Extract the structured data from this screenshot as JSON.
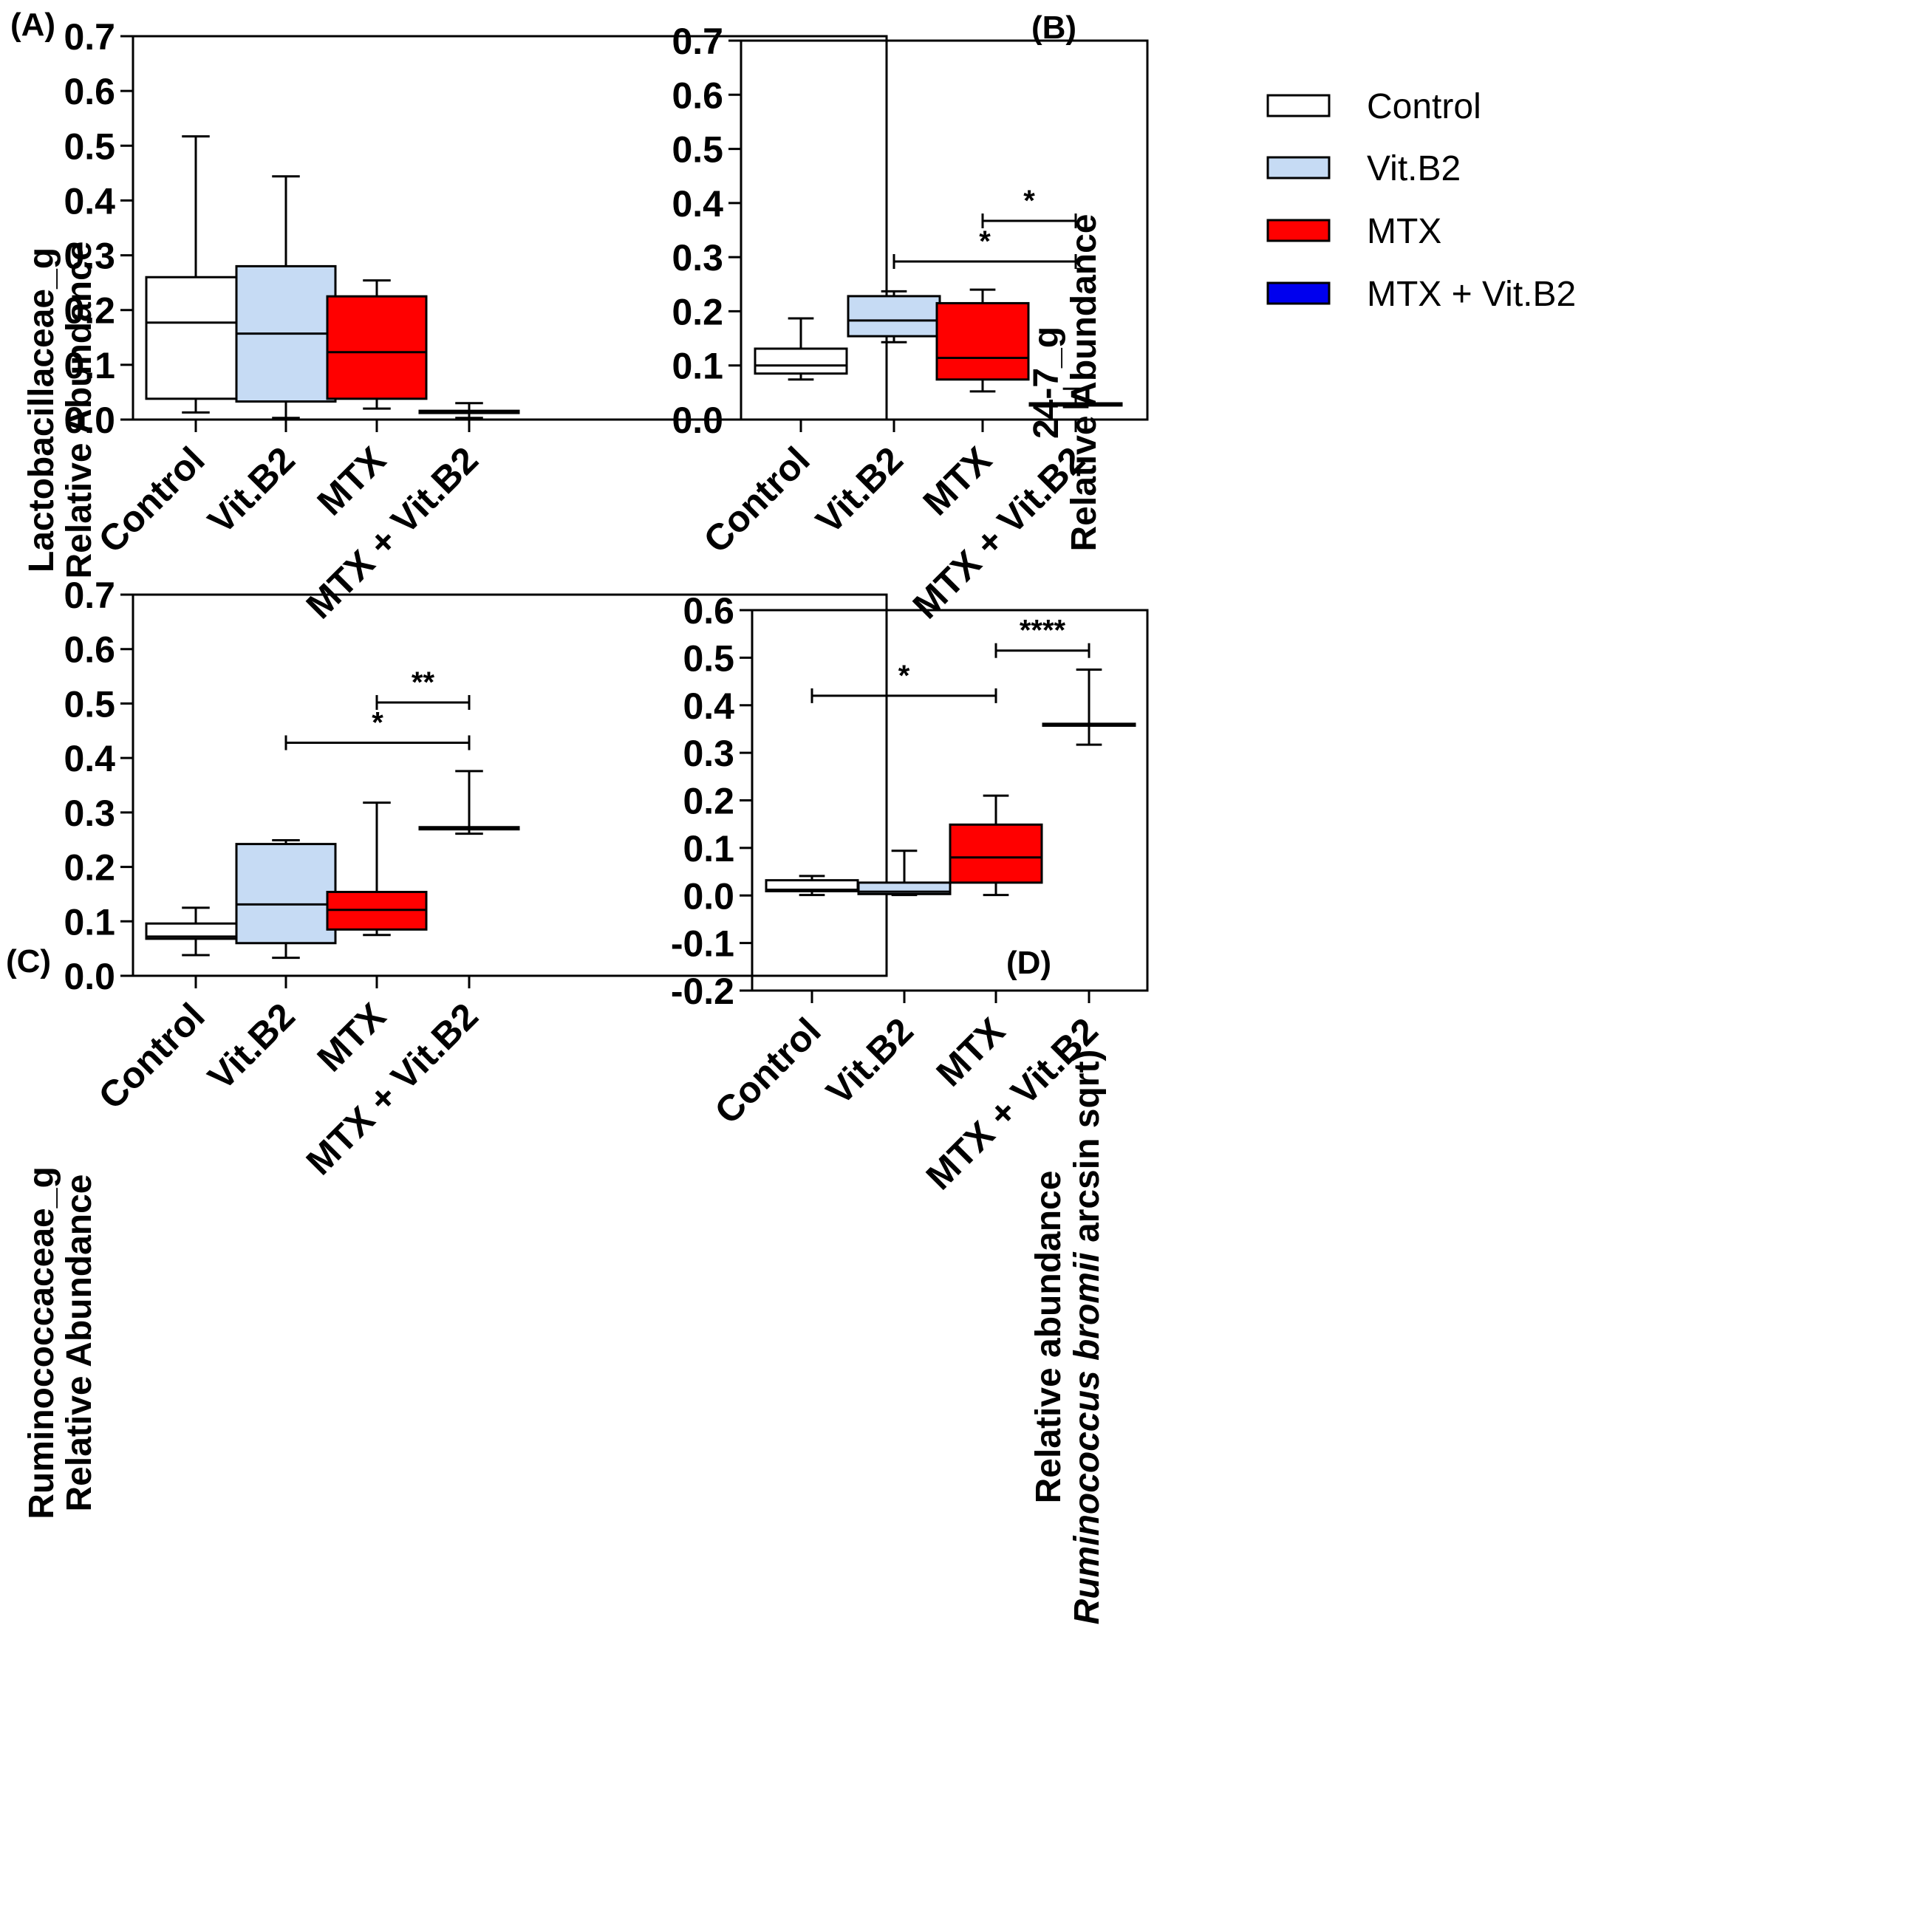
{
  "figure": {
    "categories": [
      "Control",
      "Vit.B2",
      "MTX",
      "MTX + Vit.B2"
    ]
  },
  "colors": {
    "Control": "#ffffff",
    "Vit.B2": "#c6dbf4",
    "MTX": "#ff0000",
    "MTX + Vit.B2": "#0000ee"
  },
  "legend": {
    "entries": [
      {
        "label": "Control",
        "color": "#ffffff"
      },
      {
        "label": "Vit.B2",
        "color": "#c6dbf4"
      },
      {
        "label": "MTX",
        "color": "#ff0000"
      },
      {
        "label": "MTX + Vit.B2",
        "color": "#0000ee"
      }
    ]
  },
  "chart_data": [
    {
      "id": "A",
      "panel_label": "(A)",
      "type": "box",
      "ylabel_lines": [
        "Lactobacillaceae_g",
        "Relative Abundance"
      ],
      "ylim": [
        0,
        0.7
      ],
      "yticks": [
        0.0,
        0.1,
        0.2,
        0.3,
        0.4,
        0.5,
        0.6,
        0.7
      ],
      "ytick_labels": [
        "0.0",
        "0.1",
        "0.2",
        "0.3",
        "0.4",
        "0.5",
        "0.6",
        "0.7"
      ],
      "categories": [
        "Control",
        "Vit.B2",
        "MTX",
        "MTX + Vit.B2"
      ],
      "boxes": [
        {
          "min": 0.013,
          "q1": 0.038,
          "median": 0.177,
          "q3": 0.26,
          "max": 0.517
        },
        {
          "min": 0.003,
          "q1": 0.033,
          "median": 0.157,
          "q3": 0.28,
          "max": 0.444
        },
        {
          "min": 0.02,
          "q1": 0.038,
          "median": 0.123,
          "q3": 0.225,
          "max": 0.254
        },
        {
          "min": 0.003,
          "q1": 0.012,
          "median": 0.015,
          "q3": 0.016,
          "max": 0.03
        }
      ],
      "significance": []
    },
    {
      "id": "B",
      "panel_label": "(B)",
      "type": "box",
      "ylabel_lines": [
        "24-7_g",
        "Relative Abundance"
      ],
      "ylim": [
        0,
        0.7
      ],
      "yticks": [
        0.0,
        0.1,
        0.2,
        0.3,
        0.4,
        0.5,
        0.6,
        0.7
      ],
      "ytick_labels": [
        "0.0",
        "0.1",
        "0.2",
        "0.3",
        "0.4",
        "0.5",
        "0.6",
        "0.7"
      ],
      "categories": [
        "Control",
        "Vit.B2",
        "MTX",
        "MTX + Vit.B2"
      ],
      "boxes": [
        {
          "min": 0.074,
          "q1": 0.085,
          "median": 0.1,
          "q3": 0.131,
          "max": 0.187
        },
        {
          "min": 0.143,
          "q1": 0.154,
          "median": 0.183,
          "q3": 0.228,
          "max": 0.237
        },
        {
          "min": 0.052,
          "q1": 0.074,
          "median": 0.114,
          "q3": 0.215,
          "max": 0.24
        },
        {
          "min": 0.023,
          "q1": 0.026,
          "median": 0.028,
          "q3": 0.03,
          "max": 0.057
        }
      ],
      "significance": [
        {
          "from": 1,
          "to": 3,
          "y": 0.292,
          "label": "*"
        },
        {
          "from": 2,
          "to": 3,
          "y": 0.367,
          "label": "*"
        }
      ]
    },
    {
      "id": "C",
      "panel_label": "(C)",
      "type": "box",
      "ylabel_lines": [
        "Ruminococcaceae_g",
        "Relative Abundance"
      ],
      "ylim": [
        0,
        0.7
      ],
      "yticks": [
        0.0,
        0.1,
        0.2,
        0.3,
        0.4,
        0.5,
        0.6,
        0.7
      ],
      "ytick_labels": [
        "0.0",
        "0.1",
        "0.2",
        "0.3",
        "0.4",
        "0.5",
        "0.6",
        "0.7"
      ],
      "categories": [
        "Control",
        "Vit.B2",
        "MTX",
        "MTX + Vit.B2"
      ],
      "boxes": [
        {
          "min": 0.038,
          "q1": 0.068,
          "median": 0.072,
          "q3": 0.096,
          "max": 0.125
        },
        {
          "min": 0.033,
          "q1": 0.06,
          "median": 0.131,
          "q3": 0.242,
          "max": 0.249
        },
        {
          "min": 0.075,
          "q1": 0.085,
          "median": 0.121,
          "q3": 0.154,
          "max": 0.318
        },
        {
          "min": 0.261,
          "q1": 0.269,
          "median": 0.272,
          "q3": 0.273,
          "max": 0.376
        }
      ],
      "significance": [
        {
          "from": 1,
          "to": 3,
          "y": 0.428,
          "label": "*"
        },
        {
          "from": 2,
          "to": 3,
          "y": 0.502,
          "label": "**"
        }
      ]
    },
    {
      "id": "D",
      "panel_label": "(D)",
      "type": "box",
      "ylabel_lines": [
        "Relative abundance",
        "Ruminococcus bromii arcsin sqrt)"
      ],
      "ylabel_italic_part": "Ruminococcus bromii",
      "ylabel_normal_part": " arcsin sqrt)",
      "ylim": [
        -0.2,
        0.6
      ],
      "yticks": [
        -0.2,
        -0.1,
        0.0,
        0.1,
        0.2,
        0.3,
        0.4,
        0.5,
        0.6
      ],
      "ytick_labels": [
        "-0.2",
        "-0.1",
        "0.0",
        "0.1",
        "0.2",
        "0.3",
        "0.4",
        "0.5",
        "0.6"
      ],
      "categories": [
        "Control",
        "Vit.B2",
        "MTX",
        "MTX + Vit.B2"
      ],
      "boxes": [
        {
          "min": 0.001,
          "q1": 0.009,
          "median": 0.012,
          "q3": 0.032,
          "max": 0.041
        },
        {
          "min": 0.001,
          "q1": 0.003,
          "median": 0.008,
          "q3": 0.027,
          "max": 0.094
        },
        {
          "min": 0.001,
          "q1": 0.027,
          "median": 0.08,
          "q3": 0.149,
          "max": 0.21
        },
        {
          "min": 0.317,
          "q1": 0.357,
          "median": 0.359,
          "q3": 0.361,
          "max": 0.475
        }
      ],
      "significance": [
        {
          "from": 0,
          "to": 2,
          "y": 0.42,
          "label": "*"
        },
        {
          "from": 2,
          "to": 3,
          "y": 0.515,
          "label": "****"
        }
      ]
    }
  ]
}
